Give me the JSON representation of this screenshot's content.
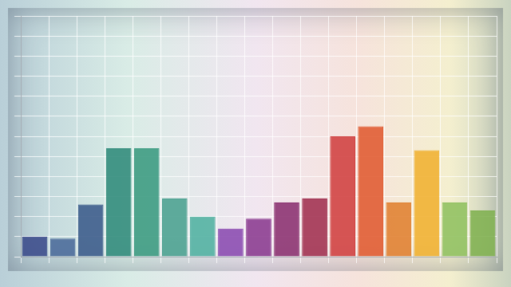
{
  "chart_data": {
    "type": "bar",
    "categories": [
      null,
      null,
      null,
      null,
      null,
      null,
      null,
      null,
      null,
      null,
      null,
      null,
      null,
      null,
      null,
      null,
      null
    ],
    "values": [
      1.0,
      0.9,
      2.6,
      5.4,
      5.4,
      2.9,
      2.0,
      1.4,
      1.9,
      2.7,
      2.9,
      6.0,
      6.5,
      2.7,
      5.3,
      2.7,
      2.3
    ],
    "colors": [
      "#3a4a8a",
      "#4a6a9a",
      "#3a5a8a",
      "#2f8a7a",
      "#3a9a80",
      "#4aa090",
      "#50b0a0",
      "#8a4ab0",
      "#8a3a90",
      "#8a3070",
      "#a03050",
      "#d04040",
      "#e05a30",
      "#e08030",
      "#f0b030",
      "#90c060",
      "#80b050"
    ],
    "ylim": [
      0,
      12
    ],
    "yticks": [
      0,
      1,
      2,
      3,
      4,
      5,
      6,
      7,
      8,
      9,
      10,
      11,
      12
    ],
    "grid": true,
    "tick_labels": false
  }
}
